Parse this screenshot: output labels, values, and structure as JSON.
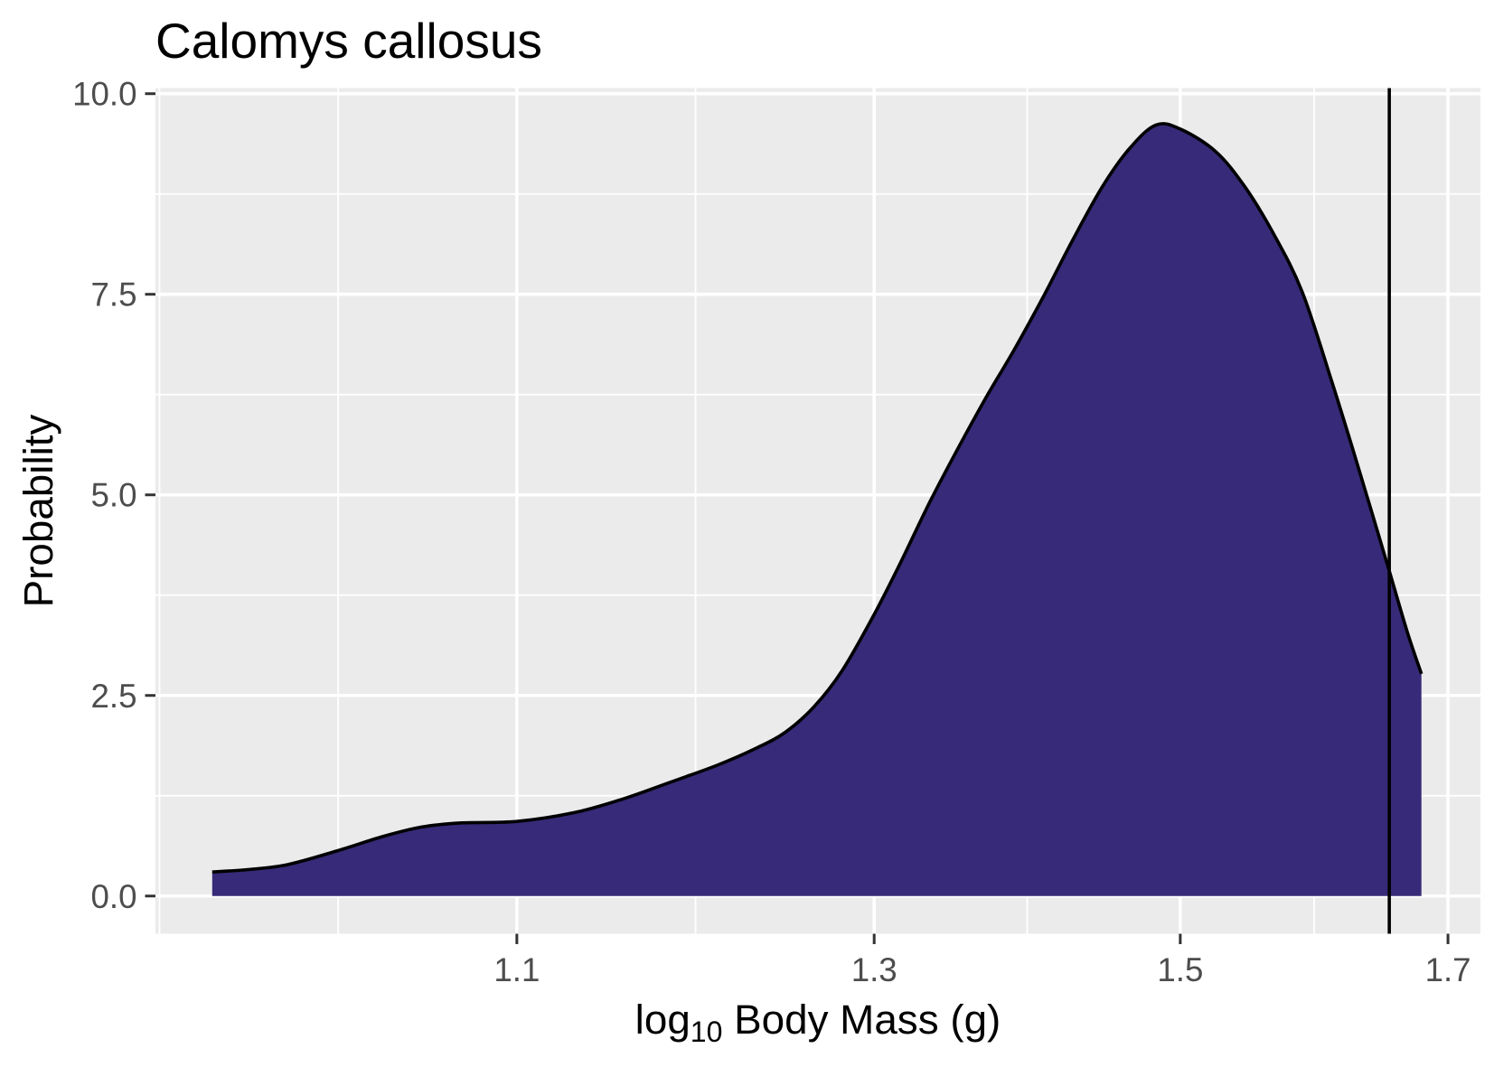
{
  "chart_data": {
    "type": "area",
    "title": "Calomys callosus",
    "xlabel": {
      "base": "log",
      "subscript": "10",
      "rest": "Body Mass (g)"
    },
    "ylabel": "Probability",
    "xscale": "log",
    "xlim": [
      0.929,
      1.726
    ],
    "ylim": [
      -0.47,
      10.07
    ],
    "xticks": [
      1.1,
      1.3,
      1.5,
      1.7
    ],
    "xtick_labels": [
      "1.1",
      "1.3",
      "1.5",
      "1.7"
    ],
    "yticks": [
      0,
      2.5,
      5,
      7.5,
      10
    ],
    "ytick_labels": [
      "0.0",
      "2.5",
      "5.0",
      "7.5",
      "10.0"
    ],
    "grid": true,
    "series": [
      {
        "x": [
          0.954,
          0.97,
          0.988,
          1.011,
          1.033,
          1.052,
          1.071,
          1.1,
          1.13,
          1.156,
          1.182,
          1.208,
          1.23,
          1.247,
          1.264,
          1.281,
          1.3,
          1.316,
          1.334,
          1.352,
          1.37,
          1.388,
          1.407,
          1.426,
          1.446,
          1.465,
          1.483,
          1.5,
          1.525,
          1.546,
          1.567,
          1.588,
          1.61,
          1.631,
          1.654,
          1.668,
          1.679
        ],
        "y": [
          0.3,
          0.33,
          0.39,
          0.56,
          0.74,
          0.86,
          0.91,
          0.93,
          1.04,
          1.21,
          1.42,
          1.63,
          1.84,
          2.04,
          2.36,
          2.82,
          3.51,
          4.15,
          4.9,
          5.58,
          6.22,
          6.81,
          7.47,
          8.16,
          8.83,
          9.32,
          9.61,
          9.56,
          9.28,
          8.84,
          8.25,
          7.53,
          6.42,
          5.3,
          4.05,
          3.29,
          2.77
        ]
      }
    ],
    "vline_x": 1.654,
    "colors": {
      "fill": "#372A78",
      "line": "#000000",
      "vline": "#000000",
      "panel": "#EBEBEB",
      "grid": "#FFFFFF",
      "tick": "#333333",
      "tick_label": "#4D4D4D"
    }
  }
}
